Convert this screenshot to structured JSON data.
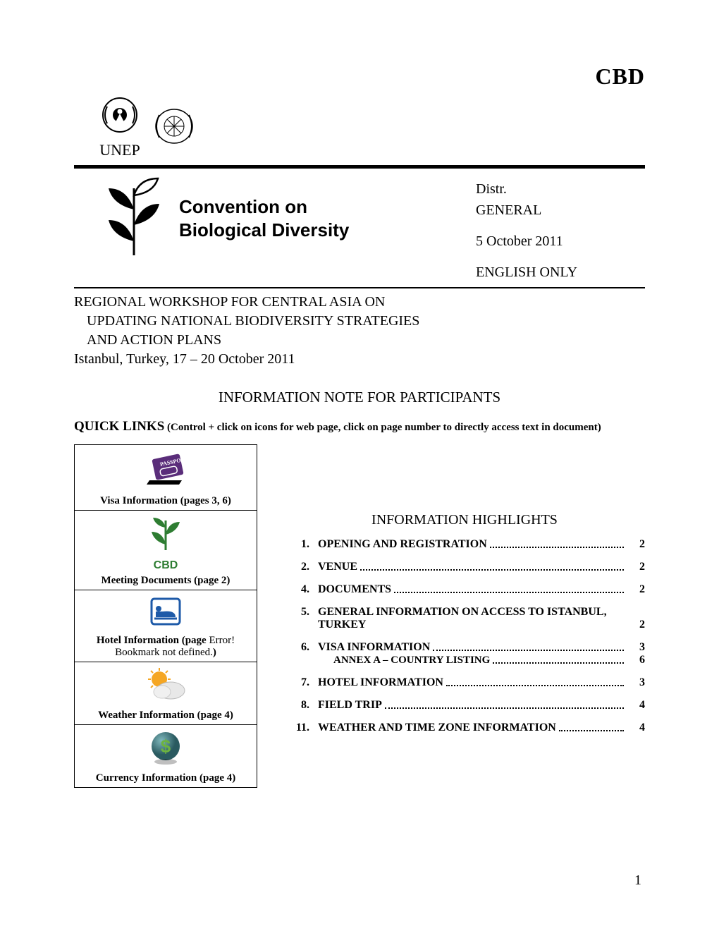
{
  "header": {
    "cbd_top": "CBD",
    "unep_label": "UNEP"
  },
  "banner": {
    "line1": "Convention on",
    "line2": "Biological Diversity"
  },
  "distr": {
    "l1": "Distr.",
    "l2": "GENERAL",
    "date": "5 October 2011",
    "lang": "ENGLISH ONLY"
  },
  "workshop": {
    "l1": "REGIONAL WORKSHOP FOR CENTRAL ASIA ON",
    "l2": "UPDATING NATIONAL BIODIVERSITY STRATEGIES",
    "l3": "AND ACTION PLANS",
    "l4": "Istanbul, Turkey, 17 – 20 October 2011"
  },
  "info_note": "INFORMATION NOTE FOR PARTICIPANTS",
  "quick_links": {
    "label": "QUICK LINKS",
    "hint": " (Control + click on icons for web page, click on page number to directly access text in document)"
  },
  "icons_sidebar": [
    {
      "caption": "Visa Information (pages 3, 6)",
      "icon": "passport"
    },
    {
      "caption": "Meeting Documents (page 2)",
      "icon": "cbd"
    },
    {
      "caption_pre": "Hotel Information (page ",
      "caption_err": "Error! Bookmark not defined.",
      "caption_post": ")",
      "icon": "hotel"
    },
    {
      "caption": "Weather Information (page 4)",
      "icon": "weather"
    },
    {
      "caption": "Currency Information (page 4)",
      "icon": "currency"
    }
  ],
  "highlights_title": "INFORMATION HIGHLIGHTS",
  "toc": [
    {
      "num": "1.",
      "label": "OPENING AND REGISTRATION",
      "page": "2"
    },
    {
      "num": "2.",
      "label": "VENUE",
      "page": "2"
    },
    {
      "num": "4.",
      "label": "DOCUMENTS",
      "page": "2"
    },
    {
      "num": "5.",
      "label": "GENERAL INFORMATION ON ACCESS TO ISTANBUL, TURKEY",
      "page": "2",
      "multiline": true
    },
    {
      "num": "6.",
      "label": "VISA INFORMATION",
      "page": "3",
      "sub_label": "ANNEX A – COUNTRY LISTING",
      "sub_page": "6"
    },
    {
      "num": "7.",
      "label": "HOTEL INFORMATION",
      "page": "3"
    },
    {
      "num": "8.",
      "label": "FIELD TRIP",
      "page": "4"
    },
    {
      "num": "11.",
      "label": "WEATHER AND TIME ZONE INFORMATION",
      "page": "4",
      "multiline": true
    }
  ],
  "page_number": "1",
  "colors": {
    "text": "#000000",
    "cbd_green": "#2e7d32",
    "hotel_blue": "#1e5aa8",
    "weather_sun": "#f5a623",
    "weather_cloud": "#e8e8e8",
    "currency_teal": "#3a7a80",
    "currency_dollar": "#6db33f",
    "passport_purple": "#5a2d7a"
  }
}
